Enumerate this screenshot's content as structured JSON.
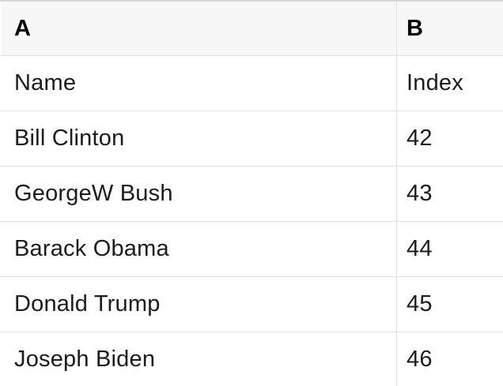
{
  "table": {
    "columns": [
      {
        "label": "A"
      },
      {
        "label": "B"
      }
    ],
    "rows": [
      {
        "a": "Name",
        "b": "Index"
      },
      {
        "a": "Bill Clinton",
        "b": "42"
      },
      {
        "a": "GeorgeW Bush",
        "b": "43"
      },
      {
        "a": "Barack Obama",
        "b": "44"
      },
      {
        "a": "Donald Trump",
        "b": "45"
      },
      {
        "a": "Joseph Biden",
        "b": "46"
      }
    ]
  },
  "colors": {
    "header_background": "#f7f7f7",
    "grid_line": "#e1e1e1",
    "top_border": "#d7d7d7",
    "header_text": "#000000",
    "cell_text": "#1c1c1c"
  }
}
